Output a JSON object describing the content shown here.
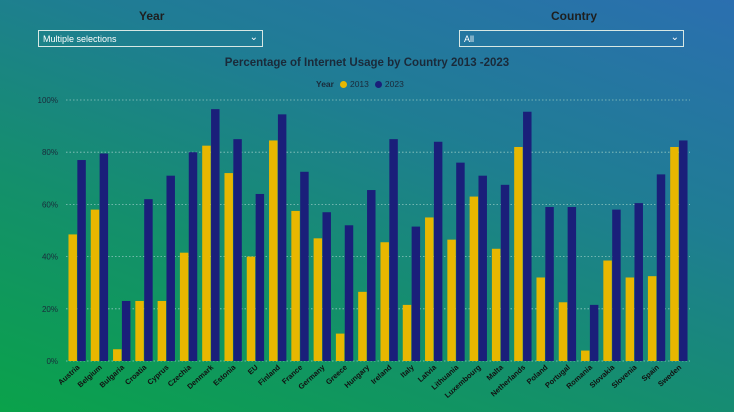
{
  "filters": {
    "year": {
      "label": "Year",
      "value": "Multiple selections"
    },
    "country": {
      "label": "Country",
      "value": "All"
    }
  },
  "colors": {
    "y2013": "#e8b700",
    "y2023": "#1a1f7a",
    "grid": "#8fc6c0"
  },
  "chart_data": {
    "type": "bar",
    "title": "Percentage of Internet Usage by Country 2013 -2023",
    "legend_title": "Year",
    "legend_position": "top-center",
    "grid": true,
    "yticks": [
      "0%",
      "20%",
      "40%",
      "60%",
      "80%",
      "100%"
    ],
    "ylim": [
      0,
      100
    ],
    "categories": [
      "Austria",
      "Belgium",
      "Bulgaria",
      "Croatia",
      "Cyprus",
      "Czechia",
      "Denmark",
      "Estonia",
      "EU",
      "Finland",
      "France",
      "Germany",
      "Greece",
      "Hungary",
      "Ireland",
      "Italy",
      "Latvia",
      "Lithuania",
      "Luxembourg",
      "Malta",
      "Netherlands",
      "Poland",
      "Portugal",
      "Romania",
      "Slovakia",
      "Slovenia",
      "Spain",
      "Sweden"
    ],
    "series": [
      {
        "name": "2013",
        "color": "#e8b700",
        "values": [
          48.5,
          58,
          4.5,
          23,
          23,
          41.5,
          82.5,
          72,
          40,
          84.5,
          57.5,
          47,
          10.5,
          26.5,
          45.5,
          21.5,
          55,
          46.5,
          63,
          43,
          82,
          32,
          22.5,
          4,
          38.5,
          32,
          32.5,
          82
        ]
      },
      {
        "name": "2023",
        "color": "#1a1f7a",
        "values": [
          77,
          79.5,
          23,
          62,
          71,
          80,
          96.5,
          85,
          64,
          94.5,
          72.5,
          57,
          52,
          65.5,
          85,
          51.5,
          84,
          76,
          71,
          67.5,
          95.5,
          59,
          59,
          21.5,
          58,
          60.5,
          71.5,
          84.5
        ]
      }
    ]
  }
}
